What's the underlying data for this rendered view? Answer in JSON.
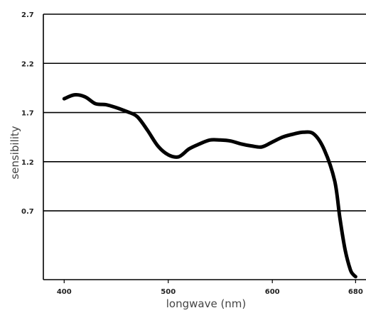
{
  "chart_data": {
    "type": "line",
    "title": "",
    "xlabel": "longwave (nm)",
    "ylabel": "sensibility",
    "xlim": [
      380,
      690
    ],
    "ylim": [
      0.0,
      2.7
    ],
    "x_ticks": [
      400,
      500,
      600,
      680
    ],
    "x_tick_labels": [
      "400",
      "500",
      "600",
      "680"
    ],
    "y_ticks": [
      0.7,
      1.2,
      1.7,
      2.2,
      2.7
    ],
    "y_tick_labels": [
      "0.7",
      "1.2",
      "1.7",
      "2.2",
      "2.7"
    ],
    "grid": "horizontal",
    "legend": "none",
    "colors": {
      "line": "#000000",
      "grid": "#000000"
    },
    "series": [
      {
        "x": [
          400,
          410,
          420,
          430,
          440,
          450,
          460,
          470,
          480,
          490,
          500,
          510,
          520,
          530,
          540,
          550,
          560,
          570,
          580,
          590,
          600,
          610,
          620,
          630,
          640,
          650,
          660,
          665,
          670,
          675,
          678,
          680
        ],
        "values": [
          1.84,
          1.88,
          1.86,
          1.79,
          1.78,
          1.75,
          1.71,
          1.66,
          1.52,
          1.36,
          1.27,
          1.25,
          1.33,
          1.38,
          1.42,
          1.42,
          1.41,
          1.38,
          1.36,
          1.35,
          1.4,
          1.45,
          1.48,
          1.5,
          1.48,
          1.32,
          1.0,
          0.62,
          0.3,
          0.1,
          0.05,
          0.03
        ]
      }
    ]
  }
}
